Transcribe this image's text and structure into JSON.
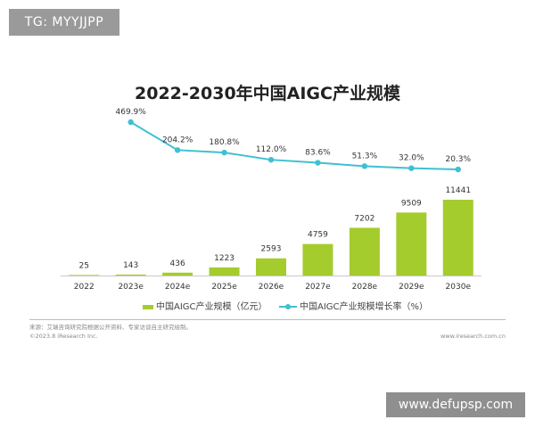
{
  "watermark_top": "TG: MYYJJPP",
  "watermark_bottom": "www.defupsp.com",
  "title": "2022-2030年中国AIGC产业规模",
  "legend": {
    "bar_label": "中国AIGC产业规模（亿元）",
    "line_label": "中国AIGC产业规模增长率（%）"
  },
  "footer": {
    "source": "来源：艾瑞咨询研究院根据公开资料、专家访谈自主研究绘制。",
    "copyright": "©2023.8 iResearch Inc.",
    "site": "www.iresearch.com.cn"
  },
  "colors": {
    "bar": "#a4cc2d",
    "line": "#3fc0d2"
  },
  "chart_data": {
    "type": "bar",
    "title": "2022-2030年中国AIGC产业规模",
    "categories": [
      "2022",
      "2023e",
      "2024e",
      "2025e",
      "2026e",
      "2027e",
      "2028e",
      "2029e",
      "2030e"
    ],
    "series": [
      {
        "name": "中国AIGC产业规模（亿元）",
        "type": "bar",
        "values": [
          25,
          143,
          436,
          1223,
          2593,
          4759,
          7202,
          9509,
          11441
        ],
        "labels": [
          "25",
          "143",
          "436",
          "1223",
          "2593",
          "4759",
          "7202",
          "9509",
          "11441"
        ]
      },
      {
        "name": "中国AIGC产业规模增长率（%）",
        "type": "line",
        "values": [
          null,
          469.9,
          204.2,
          180.8,
          112.0,
          83.6,
          51.3,
          32.0,
          20.3
        ],
        "labels": [
          "",
          "469.9%",
          "204.2%",
          "180.8%",
          "112.0%",
          "83.6%",
          "51.3%",
          "32.0%",
          "20.3%"
        ]
      }
    ],
    "legend_position": "bottom",
    "grid": false
  }
}
